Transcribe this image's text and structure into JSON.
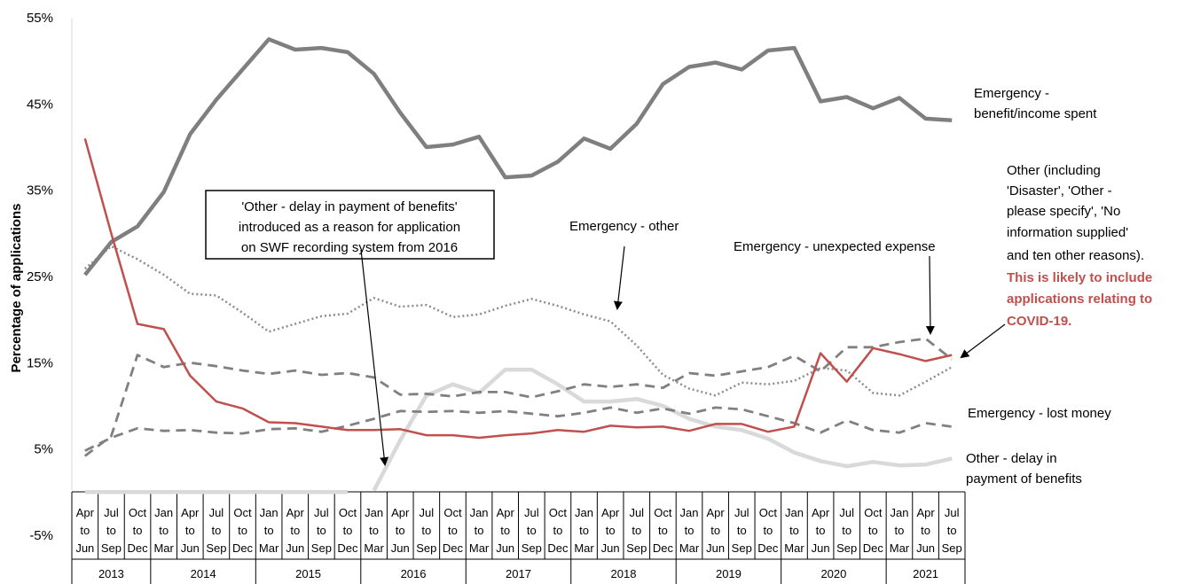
{
  "chart_data": {
    "type": "line",
    "ylabel": "Percentage of applications",
    "y_ticks": [
      "55%",
      "45%",
      "35%",
      "25%",
      "15%",
      "5%",
      "-5%"
    ],
    "ylim": [
      -5,
      55
    ],
    "grid": false,
    "quarters": [
      [
        "Apr",
        "to",
        "Jun"
      ],
      [
        "Jul",
        "to",
        "Sep"
      ],
      [
        "Oct",
        "to",
        "Dec"
      ],
      [
        "Jan",
        "to",
        "Mar"
      ],
      [
        "Apr",
        "to",
        "Jun"
      ],
      [
        "Jul",
        "to",
        "Sep"
      ],
      [
        "Oct",
        "to",
        "Dec"
      ],
      [
        "Jan",
        "to",
        "Mar"
      ],
      [
        "Apr",
        "to",
        "Jun"
      ],
      [
        "Jul",
        "to",
        "Sep"
      ],
      [
        "Oct",
        "to",
        "Dec"
      ],
      [
        "Jan",
        "to",
        "Mar"
      ],
      [
        "Apr",
        "to",
        "Jun"
      ],
      [
        "Jul",
        "to",
        "Sep"
      ],
      [
        "Oct",
        "to",
        "Dec"
      ],
      [
        "Jan",
        "to",
        "Mar"
      ],
      [
        "Apr",
        "to",
        "Jun"
      ],
      [
        "Jul",
        "to",
        "Sep"
      ],
      [
        "Oct",
        "to",
        "Dec"
      ],
      [
        "Jan",
        "to",
        "Mar"
      ],
      [
        "Apr",
        "to",
        "Jun"
      ],
      [
        "Jul",
        "to",
        "Sep"
      ],
      [
        "Oct",
        "to",
        "Dec"
      ],
      [
        "Jan",
        "to",
        "Mar"
      ],
      [
        "Apr",
        "to",
        "Jun"
      ],
      [
        "Jul",
        "to",
        "Sep"
      ],
      [
        "Oct",
        "to",
        "Dec"
      ],
      [
        "Jan",
        "to",
        "Mar"
      ],
      [
        "Apr",
        "to",
        "Jun"
      ],
      [
        "Jul",
        "to",
        "Sep"
      ],
      [
        "Oct",
        "to",
        "Dec"
      ],
      [
        "Jan",
        "to",
        "Mar"
      ],
      [
        "Apr",
        "to",
        "Jun"
      ],
      [
        "Jul",
        "to",
        "Sep"
      ]
    ],
    "years": [
      {
        "label": "2013",
        "count": 3
      },
      {
        "label": "2014",
        "count": 4
      },
      {
        "label": "2015",
        "count": 4
      },
      {
        "label": "2016",
        "count": 4
      },
      {
        "label": "2017",
        "count": 4
      },
      {
        "label": "2018",
        "count": 4
      },
      {
        "label": "2019",
        "count": 4
      },
      {
        "label": "2020",
        "count": 4
      },
      {
        "label": "2021",
        "count": 3
      }
    ],
    "series": [
      {
        "name": "Emergency - benefit/income spent",
        "color": "#7f7f7f",
        "style": "solid",
        "width": 4.5,
        "values": [
          25.2,
          29.0,
          30.8,
          34.8,
          41.5,
          45.5,
          49.0,
          52.5,
          51.3,
          51.5,
          51.0,
          48.5,
          44.0,
          40.0,
          40.3,
          41.2,
          36.5,
          36.7,
          38.3,
          41.0,
          39.8,
          42.7,
          47.3,
          49.3,
          49.8,
          49.0,
          51.2,
          51.5,
          45.3,
          45.8,
          44.5,
          45.7,
          43.3,
          43.1
        ]
      },
      {
        "name": "Emergency - other",
        "color": "#8c8c8c",
        "style": "dotted",
        "width": 2.5,
        "values": [
          25.9,
          28.5,
          27.0,
          25.2,
          23.0,
          22.8,
          20.8,
          18.6,
          19.5,
          20.4,
          20.7,
          22.5,
          21.5,
          21.7,
          20.3,
          20.6,
          21.6,
          22.4,
          21.6,
          20.6,
          19.8,
          17.0,
          13.6,
          12.0,
          11.2,
          12.7,
          12.5,
          12.9,
          14.4,
          14.1,
          11.5,
          11.2,
          12.8,
          14.5
        ]
      },
      {
        "name": "Emergency - unexpected expense",
        "color": "#808080",
        "style": "dashed",
        "width": 2.8,
        "values": [
          4.2,
          6.5,
          15.9,
          14.5,
          15.0,
          14.6,
          14.1,
          13.7,
          14.1,
          13.6,
          13.8,
          13.3,
          11.3,
          11.4,
          11.1,
          11.6,
          11.6,
          11.0,
          11.7,
          12.5,
          12.2,
          12.5,
          12.1,
          13.8,
          13.5,
          14.0,
          14.5,
          15.8,
          14.0,
          16.8,
          16.8,
          17.4,
          17.8,
          15.4
        ]
      },
      {
        "name": "Emergency - lost money",
        "color": "#808080",
        "style": "dashed",
        "width": 2.8,
        "values": [
          4.8,
          6.3,
          7.4,
          7.1,
          7.2,
          6.9,
          6.8,
          7.3,
          7.4,
          7.0,
          7.7,
          8.5,
          9.4,
          9.3,
          9.4,
          9.2,
          9.4,
          9.1,
          8.8,
          9.2,
          9.8,
          9.2,
          9.7,
          9.1,
          9.8,
          9.6,
          8.8,
          8.0,
          6.9,
          8.3,
          7.2,
          6.9,
          8.0,
          7.6
        ]
      },
      {
        "name": "Other - delay in payment of benefits",
        "color": "#d9d9d9",
        "style": "solid",
        "width": 4.5,
        "values": [
          null,
          null,
          null,
          null,
          null,
          null,
          null,
          null,
          null,
          null,
          null,
          0.2,
          6.0,
          11.2,
          12.5,
          11.5,
          14.2,
          14.2,
          12.5,
          10.5,
          10.5,
          10.8,
          10.0,
          8.5,
          7.6,
          7.2,
          6.2,
          4.6,
          3.6,
          3.0,
          3.5,
          3.1,
          3.2,
          3.9
        ]
      },
      {
        "name": "Other",
        "color": "#c0504d",
        "style": "solid",
        "width": 2.5,
        "values": [
          41.0,
          30.0,
          19.5,
          18.9,
          13.5,
          10.5,
          9.7,
          8.1,
          8.0,
          7.6,
          7.2,
          7.2,
          7.3,
          6.6,
          6.6,
          6.3,
          6.6,
          6.8,
          7.2,
          7.0,
          7.7,
          7.5,
          7.6,
          7.1,
          7.9,
          7.9,
          7.0,
          7.6,
          16.1,
          12.8,
          16.7,
          16.0,
          15.2,
          15.9
        ]
      }
    ],
    "zero_line_values": [
      0,
      0,
      0,
      0,
      0,
      0,
      0,
      0,
      0,
      0,
      0
    ],
    "labels": {
      "benefit": [
        "Emergency -",
        "benefit/income  spent"
      ],
      "other_emergency": [
        "Emergency -  other"
      ],
      "unexpected": [
        "Emergency - unexpected expense"
      ],
      "other_incl": [
        "Other (including",
        "'Disaster', 'Other -",
        "please specify', 'No",
        "information supplied'",
        "and ten other reasons)."
      ],
      "other_incl_red": [
        "This is likely to include",
        "applications relating to",
        "COVID-19."
      ],
      "lost_money": [
        "Emergency -  lost money"
      ],
      "delay": [
        "Other - delay in",
        "payment of benefits"
      ],
      "box": [
        "'Other - delay in payment of benefits'",
        "introduced as a reason for application",
        "on SWF recording system from 2016"
      ]
    }
  }
}
